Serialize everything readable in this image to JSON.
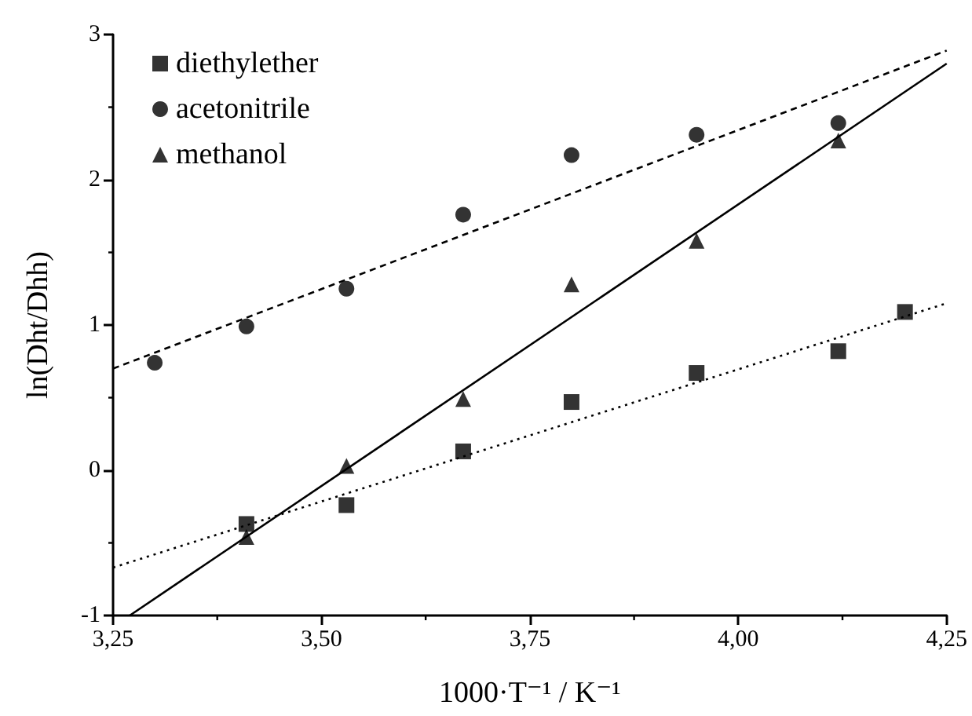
{
  "chart_data": {
    "type": "scatter",
    "xlabel": "1000·T⁻¹ / K⁻¹",
    "ylabel": "ln(Dht/Dhh)",
    "xlim": [
      3.25,
      4.25
    ],
    "ylim": [
      -1,
      3
    ],
    "xticks": [
      {
        "value": 3.25,
        "label": "3,25"
      },
      {
        "value": 3.5,
        "label": "3,50"
      },
      {
        "value": 3.75,
        "label": "3,75"
      },
      {
        "value": 4.0,
        "label": "4,00"
      },
      {
        "value": 4.25,
        "label": "4,25"
      }
    ],
    "yticks": [
      -1,
      0,
      1,
      2,
      3
    ],
    "grid": false,
    "legend": "top left",
    "series": [
      {
        "name": "diethylether",
        "marker": "square",
        "color": "#000000",
        "x": [
          3.41,
          3.53,
          3.67,
          3.8,
          3.95,
          4.12,
          4.2
        ],
        "values": [
          -0.37,
          -0.24,
          0.13,
          0.47,
          0.67,
          0.82,
          1.09
        ]
      },
      {
        "name": "acetonitrile",
        "marker": "circle",
        "color": "#000000",
        "x": [
          3.3,
          3.41,
          3.53,
          3.67,
          3.8,
          3.95,
          4.12
        ],
        "values": [
          0.74,
          0.99,
          1.25,
          1.76,
          2.17,
          2.31,
          2.39
        ]
      },
      {
        "name": "methanol",
        "marker": "triangle",
        "color": "#000000",
        "x": [
          3.41,
          3.53,
          3.67,
          3.8,
          3.95,
          4.12
        ],
        "values": [
          -0.46,
          0.03,
          0.49,
          1.28,
          1.58,
          2.27
        ]
      },
      {
        "type": "line",
        "marker": "none",
        "line_style": "dotted",
        "color": "#000000",
        "x": [
          3.25,
          4.25
        ],
        "values": [
          -0.67,
          1.15
        ]
      },
      {
        "type": "line",
        "marker": "none",
        "line_style": "dashed",
        "color": "#000000",
        "x": [
          3.25,
          4.25
        ],
        "values": [
          0.7,
          2.89
        ]
      },
      {
        "type": "line",
        "marker": "none",
        "line_style": "solid",
        "color": "#000000",
        "x": [
          3.27,
          4.25
        ],
        "values": [
          -1,
          2.8
        ]
      }
    ]
  }
}
